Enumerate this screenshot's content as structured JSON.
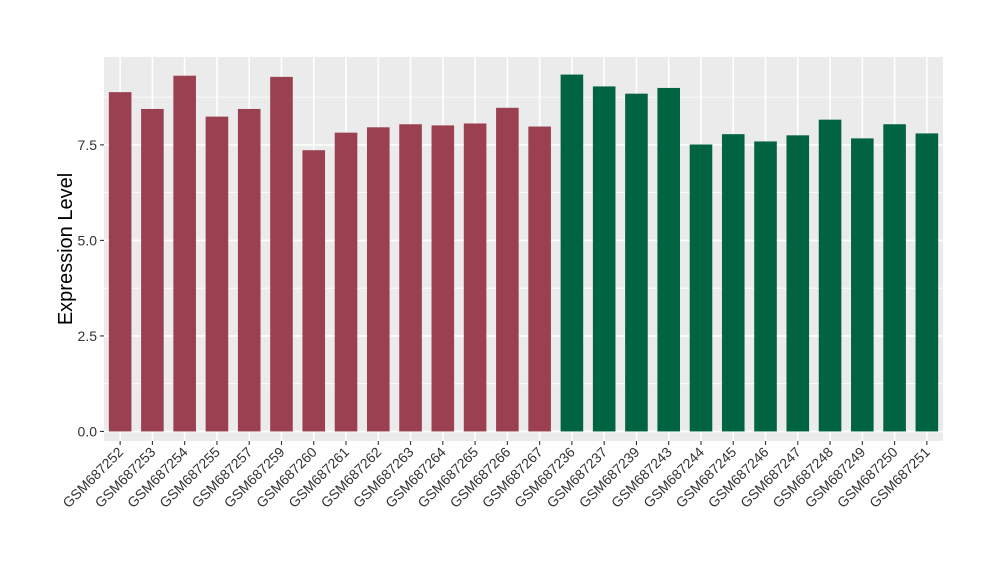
{
  "chart_data": {
    "type": "bar",
    "title": "",
    "xlabel": "",
    "ylabel": "Expression Level",
    "ylim": [
      -0.25,
      9.8
    ],
    "yticks": [
      0.0,
      2.5,
      5.0,
      7.5
    ],
    "ytick_labels": [
      "0.0",
      "2.5",
      "5.0",
      "7.5"
    ],
    "grid": true,
    "legend": "none",
    "colors": {
      "group1": "#9a4050",
      "group2": "#006442",
      "panel_bg": "#ebebeb",
      "grid": "#ffffff"
    },
    "categories": [
      "GSM687252",
      "GSM687253",
      "GSM687254",
      "GSM687255",
      "GSM687257",
      "GSM687259",
      "GSM687260",
      "GSM687261",
      "GSM687262",
      "GSM687263",
      "GSM687264",
      "GSM687265",
      "GSM687266",
      "GSM687267",
      "GSM687236",
      "GSM687237",
      "GSM687239",
      "GSM687243",
      "GSM687244",
      "GSM687245",
      "GSM687246",
      "GSM687247",
      "GSM687248",
      "GSM687249",
      "GSM687250",
      "GSM687251"
    ],
    "values": [
      8.88,
      8.44,
      9.31,
      8.24,
      8.44,
      9.28,
      7.36,
      7.82,
      7.96,
      8.04,
      8.01,
      8.06,
      8.47,
      7.98,
      9.34,
      9.03,
      8.84,
      8.99,
      7.51,
      7.78,
      7.59,
      7.75,
      8.16,
      7.67,
      8.04,
      7.8
    ],
    "groups": [
      "group1",
      "group1",
      "group1",
      "group1",
      "group1",
      "group1",
      "group1",
      "group1",
      "group1",
      "group1",
      "group1",
      "group1",
      "group1",
      "group1",
      "group2",
      "group2",
      "group2",
      "group2",
      "group2",
      "group2",
      "group2",
      "group2",
      "group2",
      "group2",
      "group2",
      "group2"
    ]
  }
}
